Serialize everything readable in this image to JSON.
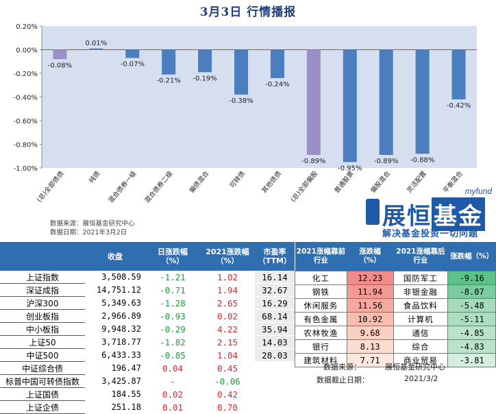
{
  "header": {
    "title": "3月3日  行情播报"
  },
  "chart_data": {
    "type": "bar",
    "title": "3月3日  行情播报",
    "categories": [
      "(总)全部债债",
      "纯债",
      "混合债券一级",
      "混合债券二级",
      "偏债混合",
      "可转债",
      "其他债债",
      "(总)全部偏股",
      "普通股票",
      "偏股混合",
      "灵活配置",
      "平衡混合"
    ],
    "values": [
      -0.08,
      0.01,
      -0.07,
      -0.21,
      -0.19,
      -0.38,
      -0.24,
      -0.89,
      -0.95,
      -0.89,
      -0.88,
      -0.42
    ],
    "value_labels": [
      "-0.08%",
      "0.01%",
      "-0.07%",
      "-0.21%",
      "-0.19%",
      "-0.38%",
      "-0.24%",
      "-0.89%",
      "-0.95%",
      "-0.89%",
      "-0.88%",
      "-0.42%"
    ],
    "highlight_colors": {
      "summary": "#9b8fc7",
      "normal": "#4a7ebf",
      "plot_bg": "#d6dff0"
    },
    "summary_indices": [
      0,
      7
    ],
    "yticks": [
      "0.20%",
      "0.00%",
      "-0.20%",
      "-0.40%",
      "-0.60%",
      "-0.80%",
      "-1.00%"
    ],
    "ytick_values": [
      0.2,
      0.0,
      -0.2,
      -0.4,
      -0.6,
      -0.8,
      -1.0
    ],
    "ylim": [
      -1.0,
      0.2
    ],
    "xlabel": "",
    "ylabel": "",
    "grid": false,
    "legend": "none"
  },
  "source": {
    "line1": "数据来源：展恒基金研究中心",
    "line2": "数据日期：2021年3月2日"
  },
  "logo": {
    "brand_en": "myfund",
    "brand_cn_1": "展恒",
    "brand_cn_2": "基金",
    "slogan": "解决基金投资一切问题"
  },
  "index_table": {
    "headers": [
      "",
      "收盘",
      "日涨跌幅\n（%）",
      "2021涨跌幅\n（%）",
      "市盈率\n（TTM）"
    ],
    "rows": [
      {
        "name": "上证指数",
        "close": "3,508.59",
        "day": "-1.21",
        "ytd": "1.02",
        "pe": "16.14",
        "day_sign": "neg",
        "ytd_sign": "pos"
      },
      {
        "name": "深证成指",
        "close": "14,751.12",
        "day": "-0.71",
        "ytd": "1.94",
        "pe": "32.67",
        "day_sign": "neg",
        "ytd_sign": "pos"
      },
      {
        "name": "沪深300",
        "close": "5,349.63",
        "day": "-1.28",
        "ytd": "2.65",
        "pe": "16.29",
        "day_sign": "neg",
        "ytd_sign": "pos"
      },
      {
        "name": "创业板指",
        "close": "2,966.89",
        "day": "-0.93",
        "ytd": "0.02",
        "pe": "68.14",
        "day_sign": "neg",
        "ytd_sign": "pos"
      },
      {
        "name": "中小板指",
        "close": "9,948.32",
        "day": "-0.29",
        "ytd": "4.22",
        "pe": "35.94",
        "day_sign": "neg",
        "ytd_sign": "pos"
      },
      {
        "name": "上证50",
        "close": "3,718.77",
        "day": "-1.82",
        "ytd": "2.15",
        "pe": "14.03",
        "day_sign": "neg",
        "ytd_sign": "pos"
      },
      {
        "name": "中证500",
        "close": "6,433.33",
        "day": "-0.85",
        "ytd": "1.04",
        "pe": "28.03",
        "day_sign": "neg",
        "ytd_sign": "pos"
      },
      {
        "name": "中证综合债",
        "close": "196.47",
        "day": "0.04",
        "ytd": "0.45",
        "pe": "",
        "day_sign": "pos",
        "ytd_sign": "pos"
      },
      {
        "name": "标普中国可转债指数",
        "close": "3,425.87",
        "day": "-",
        "ytd": "-0.06",
        "pe": "",
        "day_sign": "pos",
        "ytd_sign": "neg"
      },
      {
        "name": "上证国债",
        "close": "184.55",
        "day": "0.02",
        "ytd": "0.42",
        "pe": "",
        "day_sign": "pos",
        "ytd_sign": "pos"
      },
      {
        "name": "上证企债",
        "close": "251.18",
        "day": "0.01",
        "ytd": "0.70",
        "pe": "",
        "day_sign": "pos",
        "ytd_sign": "pos"
      }
    ]
  },
  "industry_table": {
    "headers": [
      "2021涨幅靠前\n行业",
      "涨跌幅\n（%）",
      "2021涨幅靠后\n行业",
      "涨跌幅（%）"
    ],
    "rows": [
      {
        "top": "化工",
        "top_v": "12.23",
        "bot": "国防军工",
        "bot_v": "-9.16"
      },
      {
        "top": "钢铁",
        "top_v": "11.94",
        "bot": "非银金融",
        "bot_v": "-8.07"
      },
      {
        "top": "休闲服务",
        "top_v": "11.56",
        "bot": "食品饮料",
        "bot_v": "-5.48"
      },
      {
        "top": "有色金属",
        "top_v": "10.92",
        "bot": "计算机",
        "bot_v": "-5.11"
      },
      {
        "top": "农林牧渔",
        "top_v": "9.68",
        "bot": "通信",
        "bot_v": "-4.85"
      },
      {
        "top": "银行",
        "top_v": "8.13",
        "bot": "综合",
        "bot_v": "-4.83"
      },
      {
        "top": "建筑材料",
        "top_v": "7.71",
        "bot": "商业贸易",
        "bot_v": "-3.81"
      }
    ],
    "top_colors": [
      "#f28b8b",
      "#f49a95",
      "#f6a9a0",
      "#f8bdb1",
      "#fad0c3",
      "#fbdcd0",
      "#fde8df"
    ],
    "bot_colors": [
      "#5cc08a",
      "#7acb9d",
      "#a5dbbb",
      "#acdec1",
      "#b9e3ca",
      "#bae3cb",
      "#d5eedf"
    ]
  },
  "footer": {
    "source_label": "数据来源：",
    "source_value": "展恒基金研究中心",
    "date_label": "数据截止日期：",
    "date_value": "2021/3/2"
  }
}
